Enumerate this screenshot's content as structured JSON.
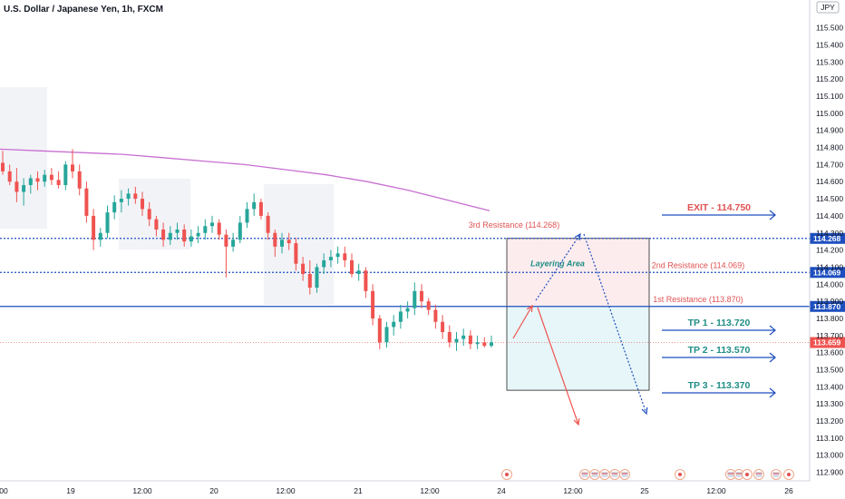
{
  "header": {
    "title": "U.S. Dollar / Japanese Yen, 1h, FXCM",
    "currency_badge": "JPY"
  },
  "colors": {
    "up": "#26a69a",
    "down": "#ef5350",
    "ma": "#c86fd2",
    "blue": "#1e4fbf",
    "red_text": "#e05252",
    "teal_text": "#1f8f86"
  },
  "chart_data": {
    "type": "candlestick",
    "symbol": "U.S. Dollar / Japanese Yen, 1h, FXCM",
    "ylim": [
      112.85,
      115.62
    ],
    "y_ticks": [
      "115.500",
      "115.400",
      "115.300",
      "115.200",
      "115.100",
      "115.000",
      "114.900",
      "114.800",
      "114.700",
      "114.600",
      "114.500",
      "114.400",
      "114.300",
      "114.200",
      "114.100",
      "114.000",
      "113.900",
      "113.800",
      "113.700",
      "113.600",
      "113.500",
      "113.400",
      "113.300",
      "113.200",
      "113.100",
      "113.000",
      "112.900"
    ],
    "x_ticks": [
      "00",
      "19",
      "12:00",
      "20",
      "12:00",
      "21",
      "12:00",
      "24",
      "12:00",
      "25",
      "12:00",
      "26"
    ],
    "candles": [
      {
        "o": 114.71,
        "h": 114.78,
        "l": 114.64,
        "c": 114.66
      },
      {
        "o": 114.66,
        "h": 114.7,
        "l": 114.58,
        "c": 114.6
      },
      {
        "o": 114.6,
        "h": 114.68,
        "l": 114.48,
        "c": 114.54
      },
      {
        "o": 114.54,
        "h": 114.62,
        "l": 114.46,
        "c": 114.58
      },
      {
        "o": 114.58,
        "h": 114.64,
        "l": 114.53,
        "c": 114.62
      },
      {
        "o": 114.62,
        "h": 114.66,
        "l": 114.55,
        "c": 114.6
      },
      {
        "o": 114.6,
        "h": 114.67,
        "l": 114.57,
        "c": 114.64
      },
      {
        "o": 114.64,
        "h": 114.68,
        "l": 114.58,
        "c": 114.61
      },
      {
        "o": 114.61,
        "h": 114.66,
        "l": 114.56,
        "c": 114.58
      },
      {
        "o": 114.58,
        "h": 114.72,
        "l": 114.55,
        "c": 114.7
      },
      {
        "o": 114.7,
        "h": 114.79,
        "l": 114.62,
        "c": 114.66
      },
      {
        "o": 114.66,
        "h": 114.7,
        "l": 114.52,
        "c": 114.56
      },
      {
        "o": 114.56,
        "h": 114.6,
        "l": 114.36,
        "c": 114.4
      },
      {
        "o": 114.4,
        "h": 114.44,
        "l": 114.2,
        "c": 114.26
      },
      {
        "o": 114.26,
        "h": 114.33,
        "l": 114.22,
        "c": 114.3
      },
      {
        "o": 114.3,
        "h": 114.46,
        "l": 114.27,
        "c": 114.42
      },
      {
        "o": 114.42,
        "h": 114.52,
        "l": 114.38,
        "c": 114.48
      },
      {
        "o": 114.48,
        "h": 114.55,
        "l": 114.42,
        "c": 114.5
      },
      {
        "o": 114.5,
        "h": 114.56,
        "l": 114.46,
        "c": 114.53
      },
      {
        "o": 114.53,
        "h": 114.57,
        "l": 114.47,
        "c": 114.5
      },
      {
        "o": 114.5,
        "h": 114.54,
        "l": 114.4,
        "c": 114.44
      },
      {
        "o": 114.44,
        "h": 114.48,
        "l": 114.34,
        "c": 114.38
      },
      {
        "o": 114.38,
        "h": 114.4,
        "l": 114.28,
        "c": 114.32
      },
      {
        "o": 114.32,
        "h": 114.36,
        "l": 114.22,
        "c": 114.26
      },
      {
        "o": 114.26,
        "h": 114.34,
        "l": 114.23,
        "c": 114.3
      },
      {
        "o": 114.3,
        "h": 114.36,
        "l": 114.26,
        "c": 114.32
      },
      {
        "o": 114.32,
        "h": 114.35,
        "l": 114.22,
        "c": 114.25
      },
      {
        "o": 114.25,
        "h": 114.32,
        "l": 114.22,
        "c": 114.28
      },
      {
        "o": 114.28,
        "h": 114.34,
        "l": 114.24,
        "c": 114.3
      },
      {
        "o": 114.3,
        "h": 114.38,
        "l": 114.26,
        "c": 114.34
      },
      {
        "o": 114.34,
        "h": 114.4,
        "l": 114.3,
        "c": 114.36
      },
      {
        "o": 114.36,
        "h": 114.38,
        "l": 114.26,
        "c": 114.29
      },
      {
        "o": 114.29,
        "h": 114.32,
        "l": 114.04,
        "c": 114.22
      },
      {
        "o": 114.22,
        "h": 114.3,
        "l": 114.19,
        "c": 114.26
      },
      {
        "o": 114.26,
        "h": 114.4,
        "l": 114.24,
        "c": 114.36
      },
      {
        "o": 114.36,
        "h": 114.48,
        "l": 114.33,
        "c": 114.44
      },
      {
        "o": 114.44,
        "h": 114.53,
        "l": 114.4,
        "c": 114.48
      },
      {
        "o": 114.48,
        "h": 114.5,
        "l": 114.38,
        "c": 114.4
      },
      {
        "o": 114.4,
        "h": 114.42,
        "l": 114.26,
        "c": 114.3
      },
      {
        "o": 114.3,
        "h": 114.32,
        "l": 114.16,
        "c": 114.22
      },
      {
        "o": 114.22,
        "h": 114.3,
        "l": 114.18,
        "c": 114.26
      },
      {
        "o": 114.26,
        "h": 114.3,
        "l": 114.2,
        "c": 114.24
      },
      {
        "o": 114.24,
        "h": 114.27,
        "l": 114.08,
        "c": 114.12
      },
      {
        "o": 114.12,
        "h": 114.16,
        "l": 114.02,
        "c": 114.06
      },
      {
        "o": 114.06,
        "h": 114.14,
        "l": 113.94,
        "c": 113.98
      },
      {
        "o": 113.98,
        "h": 114.12,
        "l": 113.95,
        "c": 114.1
      },
      {
        "o": 114.1,
        "h": 114.18,
        "l": 114.06,
        "c": 114.14
      },
      {
        "o": 114.14,
        "h": 114.2,
        "l": 114.1,
        "c": 114.16
      },
      {
        "o": 114.16,
        "h": 114.22,
        "l": 114.12,
        "c": 114.18
      },
      {
        "o": 114.18,
        "h": 114.22,
        "l": 114.1,
        "c": 114.14
      },
      {
        "o": 114.14,
        "h": 114.18,
        "l": 114.04,
        "c": 114.06
      },
      {
        "o": 114.06,
        "h": 114.12,
        "l": 114.02,
        "c": 114.08
      },
      {
        "o": 114.08,
        "h": 114.1,
        "l": 113.92,
        "c": 113.96
      },
      {
        "o": 113.96,
        "h": 114.0,
        "l": 113.76,
        "c": 113.8
      },
      {
        "o": 113.8,
        "h": 113.82,
        "l": 113.62,
        "c": 113.66
      },
      {
        "o": 113.66,
        "h": 113.78,
        "l": 113.63,
        "c": 113.75
      },
      {
        "o": 113.75,
        "h": 113.82,
        "l": 113.7,
        "c": 113.78
      },
      {
        "o": 113.78,
        "h": 113.88,
        "l": 113.74,
        "c": 113.84
      },
      {
        "o": 113.84,
        "h": 113.9,
        "l": 113.8,
        "c": 113.86
      },
      {
        "o": 113.86,
        "h": 114.01,
        "l": 113.82,
        "c": 113.96
      },
      {
        "o": 113.96,
        "h": 114.0,
        "l": 113.86,
        "c": 113.9
      },
      {
        "o": 113.9,
        "h": 113.92,
        "l": 113.82,
        "c": 113.85
      },
      {
        "o": 113.85,
        "h": 113.88,
        "l": 113.74,
        "c": 113.78
      },
      {
        "o": 113.78,
        "h": 113.82,
        "l": 113.68,
        "c": 113.72
      },
      {
        "o": 113.72,
        "h": 113.76,
        "l": 113.63,
        "c": 113.66
      },
      {
        "o": 113.66,
        "h": 113.72,
        "l": 113.61,
        "c": 113.68
      },
      {
        "o": 113.68,
        "h": 113.74,
        "l": 113.64,
        "c": 113.7
      },
      {
        "o": 113.7,
        "h": 113.73,
        "l": 113.62,
        "c": 113.65
      },
      {
        "o": 113.65,
        "h": 113.7,
        "l": 113.62,
        "c": 113.66
      },
      {
        "o": 113.66,
        "h": 113.69,
        "l": 113.63,
        "c": 113.64
      },
      {
        "o": 113.64,
        "h": 113.7,
        "l": 113.63,
        "c": 113.66
      }
    ],
    "moving_average": [
      114.79,
      114.78,
      114.77,
      114.76,
      114.74,
      114.72,
      114.7,
      114.67,
      114.64,
      114.6,
      114.55,
      114.49,
      114.43
    ],
    "levels": [
      {
        "name": "3rd Resistance",
        "value": 114.268,
        "label": "3rd Resistance (114.268)",
        "style": "dotted",
        "tag": "114.268"
      },
      {
        "name": "2nd Resistance",
        "value": 114.069,
        "label": "2nd Resistance (114.069)",
        "style": "dotted",
        "tag": "114.069"
      },
      {
        "name": "1st Resistance",
        "value": 113.87,
        "label": "1st Resistance (113.870)",
        "style": "solid",
        "tag": "113.870"
      },
      {
        "name": "Current price",
        "value": 113.659,
        "style": "price",
        "tag": "113.659"
      }
    ],
    "targets": [
      {
        "label": "EXIT - 114.750",
        "value": 114.75,
        "kind": "exit"
      },
      {
        "label": "TP 1 - 113.720",
        "value": 113.72,
        "kind": "tp"
      },
      {
        "label": "TP 2 - 113.570",
        "value": 113.57,
        "kind": "tp"
      },
      {
        "label": "TP 3 - 113.370",
        "value": 113.37,
        "kind": "tp"
      }
    ],
    "zones": [
      {
        "label": "Layering Area",
        "top": 114.268,
        "bottom": 113.87,
        "fill": "#fdecee"
      },
      {
        "top": 113.87,
        "bottom": 113.38,
        "fill": "#e6f6f9"
      }
    ]
  }
}
